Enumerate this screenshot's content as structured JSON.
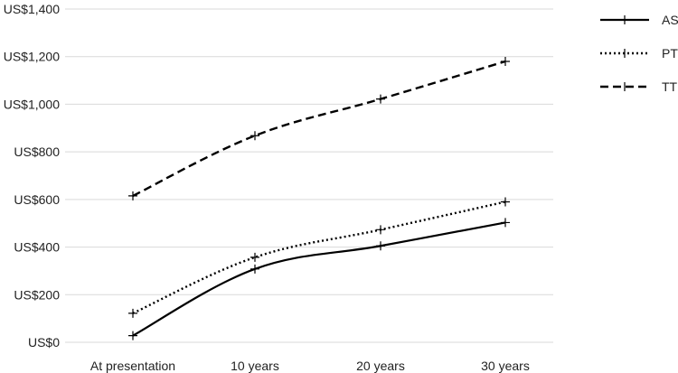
{
  "chart_data": {
    "type": "line",
    "categories": [
      "At presentation",
      "10 years",
      "20 years",
      "30 years"
    ],
    "series": [
      {
        "name": "AS",
        "values": [
          28,
          308,
          405,
          503
        ],
        "line_style": "solid"
      },
      {
        "name": "PT",
        "values": [
          122,
          357,
          473,
          590
        ],
        "line_style": "dotted"
      },
      {
        "name": "TT",
        "values": [
          615,
          868,
          1022,
          1180
        ],
        "line_style": "dashed"
      }
    ],
    "y_ticks": [
      0,
      200,
      400,
      600,
      800,
      1000,
      1200,
      1400
    ],
    "y_tick_labels": [
      "US$0",
      "US$200",
      "US$400",
      "US$600",
      "US$800",
      "US$1,000",
      "US$1,200",
      "US$1,400"
    ],
    "ylim": [
      0,
      1400
    ],
    "grid": "horizontal",
    "legend_position": "top-right",
    "marker": "plus",
    "colors": {
      "line": "#000000",
      "grid": "#d9d9d9",
      "text": "#222222"
    },
    "title": "",
    "xlabel": "",
    "ylabel": ""
  }
}
